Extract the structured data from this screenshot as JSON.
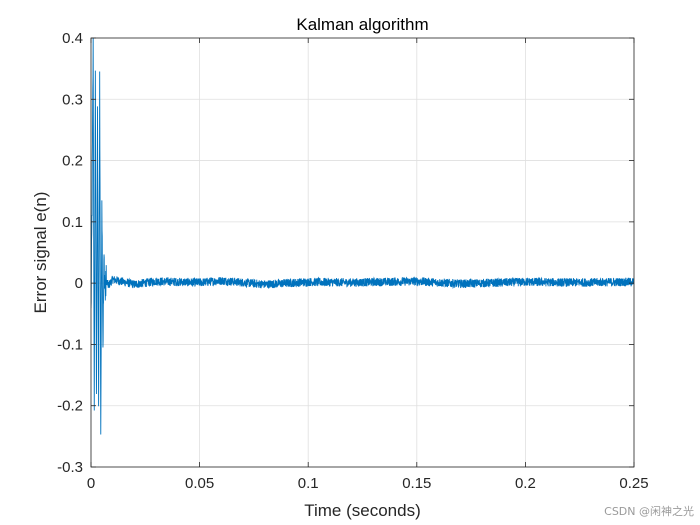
{
  "chart_data": {
    "type": "line",
    "title": "Kalman algorithm",
    "xlabel": "Time (seconds)",
    "ylabel": "Error signal e(n)",
    "xlim": [
      0,
      0.25
    ],
    "ylim": [
      -0.3,
      0.4
    ],
    "xticks": [
      0,
      0.05,
      0.1,
      0.15,
      0.2,
      0.25
    ],
    "xtick_labels": [
      "0",
      "0.05",
      "0.1",
      "0.15",
      "0.2",
      "0.25"
    ],
    "yticks": [
      -0.3,
      -0.2,
      -0.1,
      0,
      0.1,
      0.2,
      0.3,
      0.4
    ],
    "ytick_labels": [
      "-0.3",
      "-0.2",
      "-0.1",
      "0",
      "0.1",
      "0.2",
      "0.3",
      "0.4"
    ],
    "grid": true,
    "series": [
      {
        "color": "#0072bd",
        "x": [
          0,
          0.0005,
          0.001,
          0.0015,
          0.002,
          0.0025,
          0.003,
          0.0035,
          0.004,
          0.0045,
          0.005,
          0.0055,
          0.006,
          0.0065,
          0.007,
          0.008,
          0.01,
          0.015,
          0.02,
          0.03,
          0.05,
          0.06,
          0.08,
          0.1,
          0.12,
          0.15,
          0.17,
          0.2,
          0.22,
          0.25
        ],
        "y": [
          -0.05,
          0.13,
          0.39,
          -0.23,
          0.36,
          -0.2,
          0.26,
          -0.22,
          0.34,
          -0.24,
          0.15,
          -0.1,
          0.04,
          -0.02,
          0.005,
          -0.004,
          0.006,
          0.002,
          -0.002,
          0.003,
          0.001,
          0.004,
          -0.002,
          0.002,
          0.001,
          0.003,
          -0.001,
          0.002,
          0.001,
          0.002
        ]
      }
    ]
  },
  "watermark": "CSDN @闲神之光"
}
